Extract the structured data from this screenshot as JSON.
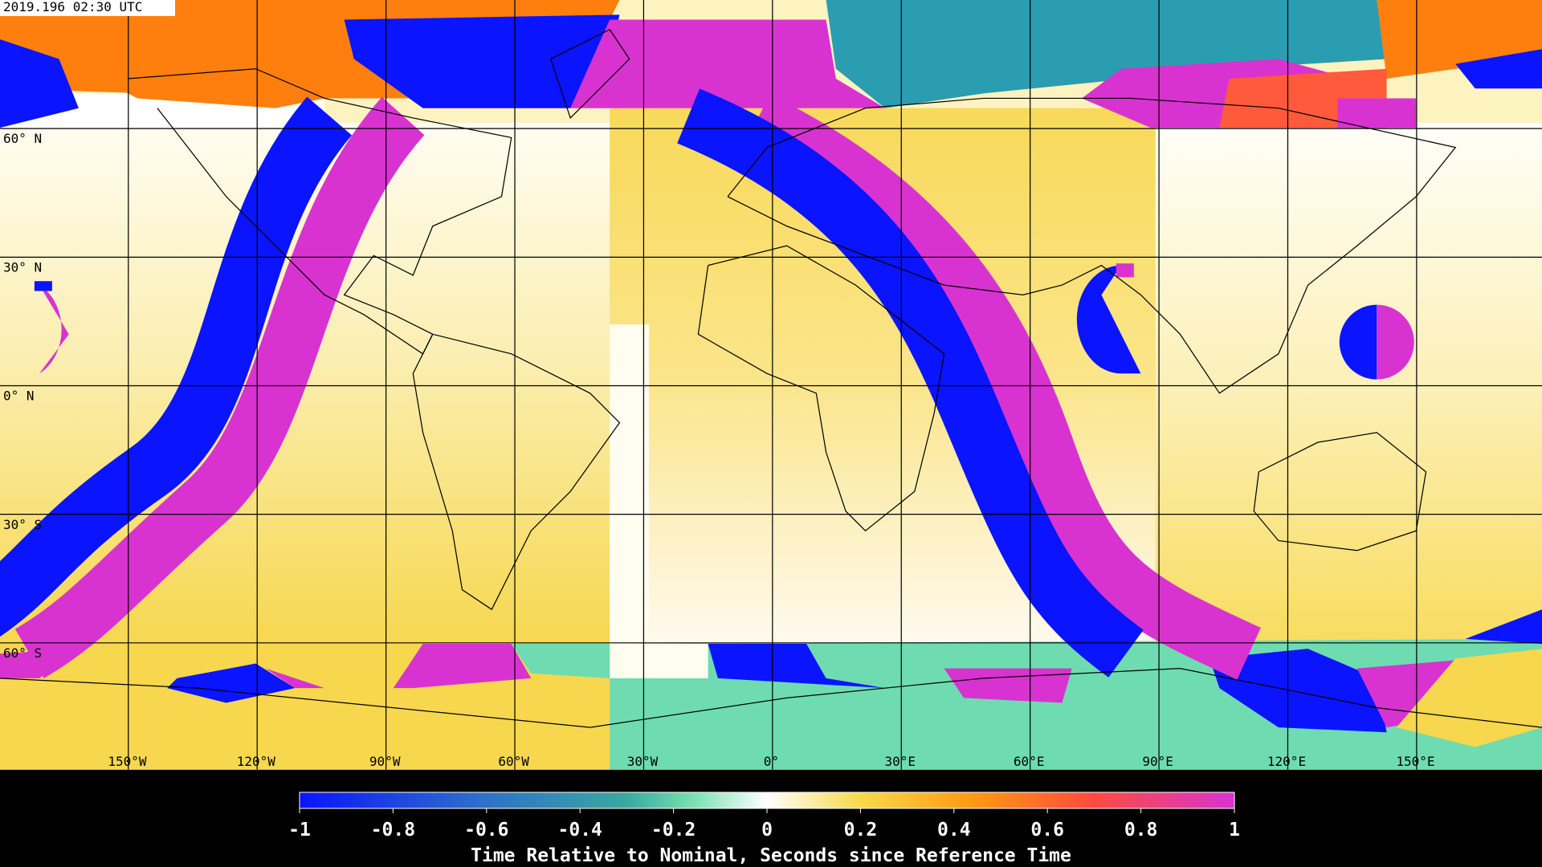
{
  "timestamp": "2019.196 02:30 UTC",
  "map": {
    "lat_labels": [
      "60° N",
      "30° N",
      "0° N",
      "30° S",
      "60° S"
    ],
    "lon_labels": [
      "150°W",
      "120°W",
      "90°W",
      "60°W",
      "30°W",
      "0°",
      "30°E",
      "60°E",
      "90°E",
      "120°E",
      "150°E"
    ]
  },
  "colorbar": {
    "label": "Time Relative to Nominal, Seconds since Reference Time",
    "lim": [
      -1,
      1
    ],
    "ticks": [
      -1,
      -0.8,
      -0.6,
      -0.4,
      -0.2,
      0,
      0.2,
      0.4,
      0.6,
      0.8,
      1
    ]
  }
}
